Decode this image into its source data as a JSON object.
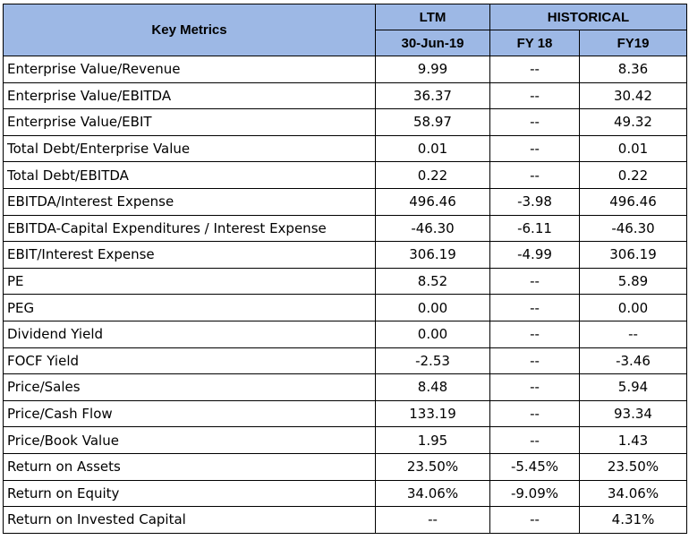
{
  "header": {
    "key_metrics": "Key Metrics",
    "ltm": "LTM",
    "historical": "HISTORICAL",
    "ltm_date": "30-Jun-19",
    "fy18": "FY 18",
    "fy19": "FY19"
  },
  "rows": [
    {
      "metric": "Enterprise Value/Revenue",
      "ltm": "9.99",
      "fy18": "--",
      "fy19": "8.36"
    },
    {
      "metric": "Enterprise Value/EBITDA",
      "ltm": "36.37",
      "fy18": "--",
      "fy19": "30.42"
    },
    {
      "metric": "Enterprise Value/EBIT",
      "ltm": "58.97",
      "fy18": "--",
      "fy19": "49.32"
    },
    {
      "metric": "Total Debt/Enterprise Value",
      "ltm": "0.01",
      "fy18": "--",
      "fy19": "0.01"
    },
    {
      "metric": "Total Debt/EBITDA",
      "ltm": "0.22",
      "fy18": "--",
      "fy19": "0.22"
    },
    {
      "metric": "EBITDA/Interest Expense",
      "ltm": "496.46",
      "fy18": "-3.98",
      "fy19": "496.46"
    },
    {
      "metric": "EBITDA-Capital Expenditures / Interest Expense",
      "ltm": "-46.30",
      "fy18": "-6.11",
      "fy19": "-46.30"
    },
    {
      "metric": "EBIT/Interest Expense",
      "ltm": "306.19",
      "fy18": "-4.99",
      "fy19": "306.19"
    },
    {
      "metric": "PE",
      "ltm": "8.52",
      "fy18": "--",
      "fy19": "5.89"
    },
    {
      "metric": "PEG",
      "ltm": "0.00",
      "fy18": "--",
      "fy19": "0.00"
    },
    {
      "metric": "Dividend Yield",
      "ltm": "0.00",
      "fy18": "--",
      "fy19": "--"
    },
    {
      "metric": "FOCF Yield",
      "ltm": "-2.53",
      "fy18": "--",
      "fy19": "-3.46"
    },
    {
      "metric": "Price/Sales",
      "ltm": "8.48",
      "fy18": "--",
      "fy19": "5.94"
    },
    {
      "metric": "Price/Cash Flow",
      "ltm": "133.19",
      "fy18": "--",
      "fy19": "93.34"
    },
    {
      "metric": "Price/Book Value",
      "ltm": "1.95",
      "fy18": "--",
      "fy19": "1.43"
    },
    {
      "metric": "Return on Assets",
      "ltm": "23.50%",
      "fy18": "-5.45%",
      "fy19": "23.50%"
    },
    {
      "metric": "Return on Equity",
      "ltm": "34.06%",
      "fy18": "-9.09%",
      "fy19": "34.06%"
    },
    {
      "metric": "Return on Invested Capital",
      "ltm": "--",
      "fy18": "--",
      "fy19": "4.31%"
    }
  ],
  "colors": {
    "header_fill": "#9db8e5",
    "border": "#000000"
  }
}
